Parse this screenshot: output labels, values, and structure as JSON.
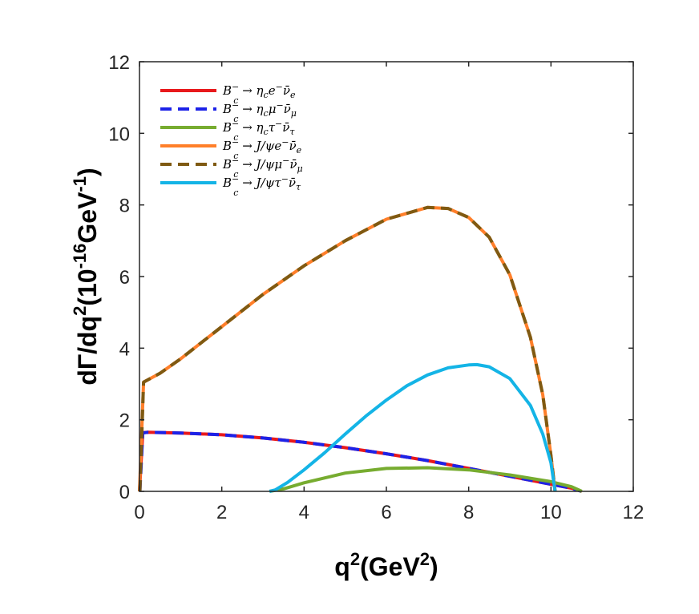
{
  "chart_data": {
    "type": "line",
    "title": "",
    "xlabel": {
      "base": "q",
      "sup": "2",
      "rest": "(GeV",
      "sup2": "2",
      "close": ")"
    },
    "ylabel": {
      "text": "dΓ/dq",
      "sup": "2",
      "mid": "(10",
      "sup2": "-16",
      "unit": "GeV",
      "sup3": "-1",
      "close": ")"
    },
    "xlim": [
      0,
      12
    ],
    "ylim": [
      0,
      12
    ],
    "xticks": [
      0,
      2,
      4,
      6,
      8,
      10,
      12
    ],
    "yticks": [
      0,
      2,
      4,
      6,
      8,
      10,
      12
    ],
    "grid": false,
    "legend_position": "top-left",
    "series": [
      {
        "name": "B_c^- → η_c e^- ν̄_e",
        "label": {
          "main": "B",
          "sub": "c",
          "sup": "−",
          "arrow": " → ",
          "particle": "η",
          "psub": "c",
          "lepton": "e",
          "lsup": "−",
          "nu": "ν̄",
          "nusub": "e"
        },
        "color": "#e8191c",
        "dash": "solid",
        "x": [
          0,
          0.08,
          0.2,
          1,
          2,
          3,
          4,
          5,
          6,
          7,
          8,
          9,
          10,
          10.5,
          10.75
        ],
        "y": [
          0,
          1.64,
          1.65,
          1.63,
          1.58,
          1.49,
          1.37,
          1.22,
          1.05,
          0.86,
          0.64,
          0.42,
          0.2,
          0.09,
          0.0
        ]
      },
      {
        "name": "B_c^- → η_c μ^- ν̄_μ",
        "label": {
          "main": "B",
          "sub": "c",
          "sup": "−",
          "arrow": " → ",
          "particle": "η",
          "psub": "c",
          "lepton": "μ",
          "lsup": "−",
          "nu": "ν̄",
          "nusub": "μ"
        },
        "color": "#1c22e8",
        "dash": "dashed",
        "x": [
          0.01,
          0.08,
          0.2,
          1,
          2,
          3,
          4,
          5,
          6,
          7,
          8,
          9,
          10,
          10.5,
          10.74
        ],
        "y": [
          0,
          1.63,
          1.65,
          1.63,
          1.58,
          1.49,
          1.37,
          1.22,
          1.05,
          0.86,
          0.64,
          0.42,
          0.2,
          0.09,
          0.0
        ]
      },
      {
        "name": "B_c^- → η_c τ^- ν̄_τ",
        "label": {
          "main": "B",
          "sub": "c",
          "sup": "−",
          "arrow": " → ",
          "particle": "η",
          "psub": "c",
          "lepton": "τ",
          "lsup": "−",
          "nu": "ν̄",
          "nusub": "τ"
        },
        "color": "#77ac30",
        "dash": "solid",
        "x": [
          3.16,
          3.5,
          4,
          5,
          6,
          7,
          8,
          9,
          10,
          10.5,
          10.75
        ],
        "y": [
          0,
          0.07,
          0.24,
          0.51,
          0.64,
          0.66,
          0.6,
          0.46,
          0.27,
          0.13,
          0.0
        ]
      },
      {
        "name": "B_c^- → J/ψ e^- ν̄_e",
        "label": {
          "main": "B",
          "sub": "c",
          "sup": "−",
          "arrow": " → ",
          "particle": "J/ψ",
          "psub": "",
          "lepton": "e",
          "lsup": "−",
          "nu": "ν̄",
          "nusub": "e"
        },
        "color": "#ff7f2a",
        "dash": "solid",
        "x": [
          0,
          0.1,
          0.5,
          1,
          2,
          3,
          4,
          5,
          6,
          7,
          7.5,
          8,
          8.5,
          9,
          9.5,
          9.8,
          10.0,
          10.1
        ],
        "y": [
          0,
          3.05,
          3.3,
          3.7,
          4.6,
          5.5,
          6.3,
          7.0,
          7.6,
          7.93,
          7.9,
          7.65,
          7.1,
          6.05,
          4.3,
          2.7,
          1.0,
          0.0
        ]
      },
      {
        "name": "B_c^- → J/ψ μ^- ν̄_μ",
        "label": {
          "main": "B",
          "sub": "c",
          "sup": "−",
          "arrow": " → ",
          "particle": "J/ψ",
          "psub": "",
          "lepton": "μ",
          "lsup": "−",
          "nu": "ν̄",
          "nusub": "μ"
        },
        "color": "#7f5a12",
        "dash": "dashed",
        "x": [
          0.01,
          0.1,
          0.5,
          1,
          2,
          3,
          4,
          5,
          6,
          7,
          7.5,
          8,
          8.5,
          9,
          9.5,
          9.8,
          10.0,
          10.1
        ],
        "y": [
          0,
          3.05,
          3.3,
          3.7,
          4.6,
          5.5,
          6.3,
          7.0,
          7.6,
          7.93,
          7.9,
          7.65,
          7.1,
          6.05,
          4.3,
          2.7,
          1.0,
          0.0
        ]
      },
      {
        "name": "B_c^- → J/ψ τ^- ν̄_τ",
        "label": {
          "main": "B",
          "sub": "c",
          "sup": "−",
          "arrow": " → ",
          "particle": "J/ψ",
          "psub": "",
          "lepton": "τ",
          "lsup": "−",
          "nu": "ν̄",
          "nusub": "τ"
        },
        "color": "#14b4e6",
        "dash": "solid",
        "x": [
          3.16,
          3.3,
          3.6,
          4,
          4.5,
          5,
          5.5,
          6,
          6.5,
          7,
          7.5,
          8,
          8.2,
          8.5,
          9,
          9.5,
          9.8,
          10.0,
          10.1
        ],
        "y": [
          0,
          0.04,
          0.25,
          0.6,
          1.08,
          1.6,
          2.1,
          2.55,
          2.95,
          3.25,
          3.45,
          3.53,
          3.54,
          3.48,
          3.15,
          2.4,
          1.6,
          0.8,
          0.0
        ]
      }
    ]
  }
}
